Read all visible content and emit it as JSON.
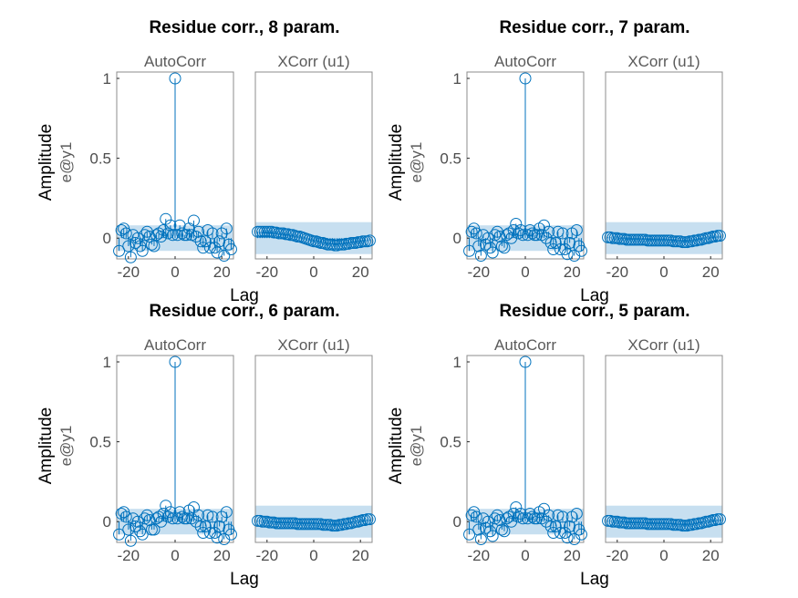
{
  "chart_data": [
    {
      "type": "scatter",
      "title": "Residue corr., 8 param.",
      "ylabel": "Amplitude",
      "channel_label": "e@y1",
      "xlabel": "Lag",
      "panels": [
        {
          "title": "AutoCorr",
          "xlim": [
            -25,
            25
          ],
          "ylim": [
            -0.13,
            1.04
          ],
          "xticks": [
            -20,
            0,
            20
          ],
          "yticks": [
            0,
            0.5,
            1
          ],
          "conf_band": [
            -0.08,
            0.08
          ],
          "x": [
            -24,
            -23,
            -22,
            -21,
            -20,
            -19,
            -18,
            -17,
            -16,
            -15,
            -14,
            -13,
            -12,
            -11,
            -10,
            -9,
            -8,
            -7,
            -6,
            -5,
            -4,
            -3,
            -2,
            -1,
            0,
            1,
            2,
            3,
            4,
            5,
            6,
            7,
            8,
            9,
            10,
            11,
            12,
            13,
            14,
            15,
            16,
            17,
            18,
            19,
            20,
            21,
            22,
            23,
            24
          ],
          "y": [
            -0.08,
            0.05,
            0.06,
            0.03,
            -0.05,
            -0.12,
            0.02,
            -0.03,
            0.0,
            -0.05,
            -0.08,
            0.02,
            0.04,
            0.01,
            -0.04,
            -0.05,
            0.02,
            0.03,
            0.01,
            0.05,
            0.12,
            0.03,
            0.08,
            0.02,
            1.0,
            0.02,
            0.08,
            0.03,
            0.02,
            0.02,
            0.06,
            0.02,
            0.11,
            0.01,
            0.04,
            -0.02,
            -0.06,
            -0.02,
            0.05,
            -0.06,
            0.03,
            -0.06,
            -0.09,
            -0.02,
            0.03,
            -0.11,
            0.06,
            -0.04,
            -0.07
          ]
        },
        {
          "title": "XCorr (u1)",
          "xlim": [
            -25,
            25
          ],
          "ylim": [
            -0.13,
            1.04
          ],
          "xticks": [
            -20,
            0,
            20
          ],
          "conf_band": [
            -0.1,
            0.1
          ],
          "x": [
            -24,
            -23,
            -22,
            -21,
            -20,
            -19,
            -18,
            -17,
            -16,
            -15,
            -14,
            -13,
            -12,
            -11,
            -10,
            -9,
            -8,
            -7,
            -6,
            -5,
            -4,
            -3,
            -2,
            -1,
            0,
            1,
            2,
            3,
            4,
            5,
            6,
            7,
            8,
            9,
            10,
            11,
            12,
            13,
            14,
            15,
            16,
            17,
            18,
            19,
            20,
            21,
            22,
            23,
            24
          ],
          "y": [
            0.04,
            0.04,
            0.04,
            0.04,
            0.04,
            0.04,
            0.04,
            0.035,
            0.035,
            0.03,
            0.03,
            0.03,
            0.025,
            0.025,
            0.02,
            0.02,
            0.015,
            0.01,
            0.01,
            0.005,
            0.0,
            -0.005,
            -0.01,
            -0.015,
            -0.02,
            -0.02,
            -0.025,
            -0.03,
            -0.03,
            -0.035,
            -0.04,
            -0.04,
            -0.04,
            -0.045,
            -0.045,
            -0.04,
            -0.04,
            -0.04,
            -0.035,
            -0.035,
            -0.03,
            -0.03,
            -0.03,
            -0.025,
            -0.025,
            -0.02,
            -0.02,
            -0.02,
            -0.015
          ]
        }
      ]
    },
    {
      "type": "scatter",
      "title": "Residue corr., 7 param.",
      "ylabel": "Amplitude",
      "channel_label": "e@y1",
      "xlabel": "Lag",
      "panels": [
        {
          "title": "AutoCorr",
          "xlim": [
            -25,
            25
          ],
          "ylim": [
            -0.13,
            1.04
          ],
          "xticks": [
            -20,
            0,
            20
          ],
          "yticks": [
            0,
            0.5,
            1
          ],
          "conf_band": [
            -0.08,
            0.08
          ],
          "x": [
            -24,
            -23,
            -22,
            -21,
            -20,
            -19,
            -18,
            -17,
            -16,
            -15,
            -14,
            -13,
            -12,
            -11,
            -10,
            -9,
            -8,
            -7,
            -6,
            -5,
            -4,
            -3,
            -2,
            -1,
            0,
            1,
            2,
            3,
            4,
            5,
            6,
            7,
            8,
            9,
            10,
            11,
            12,
            13,
            14,
            15,
            16,
            17,
            18,
            19,
            20,
            21,
            22,
            23,
            24
          ],
          "y": [
            -0.08,
            0.04,
            0.06,
            0.03,
            -0.05,
            -0.11,
            0.02,
            -0.04,
            0.0,
            -0.06,
            -0.09,
            0.02,
            0.04,
            0.01,
            -0.05,
            -0.06,
            0.02,
            0.03,
            0.0,
            0.05,
            0.09,
            0.03,
            0.05,
            0.02,
            1.0,
            0.02,
            0.05,
            0.03,
            0.02,
            0.02,
            0.06,
            0.02,
            0.08,
            0.0,
            0.04,
            -0.03,
            -0.07,
            -0.03,
            0.04,
            -0.07,
            0.03,
            -0.07,
            -0.1,
            -0.03,
            0.03,
            -0.11,
            0.05,
            -0.05,
            -0.08
          ]
        },
        {
          "title": "XCorr (u1)",
          "xlim": [
            -25,
            25
          ],
          "ylim": [
            -0.13,
            1.04
          ],
          "xticks": [
            -20,
            0,
            20
          ],
          "conf_band": [
            -0.1,
            0.1
          ],
          "x": [
            -24,
            -23,
            -22,
            -21,
            -20,
            -19,
            -18,
            -17,
            -16,
            -15,
            -14,
            -13,
            -12,
            -11,
            -10,
            -9,
            -8,
            -7,
            -6,
            -5,
            -4,
            -3,
            -2,
            -1,
            0,
            1,
            2,
            3,
            4,
            5,
            6,
            7,
            8,
            9,
            10,
            11,
            12,
            13,
            14,
            15,
            16,
            17,
            18,
            19,
            20,
            21,
            22,
            23,
            24
          ],
          "y": [
            0.005,
            0.005,
            0.0,
            0.0,
            0.0,
            -0.005,
            -0.005,
            -0.005,
            -0.01,
            -0.01,
            -0.01,
            -0.01,
            -0.01,
            -0.01,
            -0.01,
            -0.01,
            -0.01,
            -0.015,
            -0.015,
            -0.015,
            -0.015,
            -0.015,
            -0.015,
            -0.015,
            -0.015,
            -0.015,
            -0.015,
            -0.015,
            -0.02,
            -0.02,
            -0.02,
            -0.02,
            -0.025,
            -0.025,
            -0.025,
            -0.02,
            -0.02,
            -0.015,
            -0.015,
            -0.01,
            -0.01,
            -0.005,
            0.0,
            0.0,
            0.005,
            0.01,
            0.01,
            0.015,
            0.015
          ]
        }
      ]
    },
    {
      "type": "scatter",
      "title": "Residue corr., 6 param.",
      "ylabel": "Amplitude",
      "channel_label": "e@y1",
      "xlabel": "Lag",
      "panels": [
        {
          "title": "AutoCorr",
          "xlim": [
            -25,
            25
          ],
          "ylim": [
            -0.13,
            1.04
          ],
          "xticks": [
            -20,
            0,
            20
          ],
          "yticks": [
            0,
            0.5,
            1
          ],
          "conf_band": [
            -0.08,
            0.08
          ],
          "x": [
            -24,
            -23,
            -22,
            -21,
            -20,
            -19,
            -18,
            -17,
            -16,
            -15,
            -14,
            -13,
            -12,
            -11,
            -10,
            -9,
            -8,
            -7,
            -6,
            -5,
            -4,
            -3,
            -2,
            -1,
            0,
            1,
            2,
            3,
            4,
            5,
            6,
            7,
            8,
            9,
            10,
            11,
            12,
            13,
            14,
            15,
            16,
            17,
            18,
            19,
            20,
            21,
            22,
            23,
            24
          ],
          "y": [
            -0.08,
            0.05,
            0.06,
            0.03,
            -0.05,
            -0.12,
            0.02,
            -0.03,
            0.0,
            -0.06,
            -0.08,
            0.02,
            0.04,
            0.01,
            -0.05,
            -0.05,
            0.02,
            0.03,
            0.0,
            0.05,
            0.1,
            0.03,
            0.06,
            0.02,
            1.0,
            0.02,
            0.06,
            0.03,
            0.02,
            0.02,
            0.07,
            0.02,
            0.09,
            0.0,
            0.04,
            -0.03,
            -0.07,
            -0.03,
            0.04,
            -0.07,
            0.03,
            -0.07,
            -0.1,
            -0.03,
            0.03,
            -0.11,
            0.06,
            -0.05,
            -0.08
          ]
        },
        {
          "title": "XCorr (u1)",
          "xlim": [
            -25,
            25
          ],
          "ylim": [
            -0.13,
            1.04
          ],
          "xticks": [
            -20,
            0,
            20
          ],
          "conf_band": [
            -0.1,
            0.1
          ],
          "x": [
            -24,
            -23,
            -22,
            -21,
            -20,
            -19,
            -18,
            -17,
            -16,
            -15,
            -14,
            -13,
            -12,
            -11,
            -10,
            -9,
            -8,
            -7,
            -6,
            -5,
            -4,
            -3,
            -2,
            -1,
            0,
            1,
            2,
            3,
            4,
            5,
            6,
            7,
            8,
            9,
            10,
            11,
            12,
            13,
            14,
            15,
            16,
            17,
            18,
            19,
            20,
            21,
            22,
            23,
            24
          ],
          "y": [
            0.005,
            0.005,
            0.0,
            0.0,
            0.0,
            -0.005,
            -0.005,
            -0.005,
            -0.01,
            -0.01,
            -0.01,
            -0.01,
            -0.01,
            -0.01,
            -0.01,
            -0.01,
            -0.01,
            -0.015,
            -0.015,
            -0.015,
            -0.015,
            -0.015,
            -0.015,
            -0.015,
            -0.015,
            -0.015,
            -0.015,
            -0.015,
            -0.02,
            -0.02,
            -0.02,
            -0.02,
            -0.025,
            -0.025,
            -0.025,
            -0.02,
            -0.02,
            -0.015,
            -0.015,
            -0.01,
            -0.01,
            -0.005,
            0.0,
            0.0,
            0.005,
            0.01,
            0.01,
            0.015,
            0.015
          ]
        }
      ]
    },
    {
      "type": "scatter",
      "title": "Residue corr., 5 param.",
      "ylabel": "Amplitude",
      "channel_label": "e@y1",
      "xlabel": "Lag",
      "panels": [
        {
          "title": "AutoCorr",
          "xlim": [
            -25,
            25
          ],
          "ylim": [
            -0.13,
            1.04
          ],
          "xticks": [
            -20,
            0,
            20
          ],
          "yticks": [
            0,
            0.5,
            1
          ],
          "conf_band": [
            -0.08,
            0.08
          ],
          "x": [
            -24,
            -23,
            -22,
            -21,
            -20,
            -19,
            -18,
            -17,
            -16,
            -15,
            -14,
            -13,
            -12,
            -11,
            -10,
            -9,
            -8,
            -7,
            -6,
            -5,
            -4,
            -3,
            -2,
            -1,
            0,
            1,
            2,
            3,
            4,
            5,
            6,
            7,
            8,
            9,
            10,
            11,
            12,
            13,
            14,
            15,
            16,
            17,
            18,
            19,
            20,
            21,
            22,
            23,
            24
          ],
          "y": [
            -0.08,
            0.04,
            0.06,
            0.03,
            -0.05,
            -0.11,
            0.02,
            -0.04,
            0.0,
            -0.06,
            -0.09,
            0.02,
            0.04,
            0.01,
            -0.05,
            -0.06,
            0.02,
            0.03,
            0.0,
            0.05,
            0.09,
            0.03,
            0.05,
            0.02,
            1.0,
            0.02,
            0.05,
            0.03,
            0.02,
            0.02,
            0.06,
            0.02,
            0.08,
            0.0,
            0.04,
            -0.03,
            -0.07,
            -0.03,
            0.04,
            -0.07,
            0.03,
            -0.07,
            -0.1,
            -0.03,
            0.03,
            -0.11,
            0.05,
            -0.05,
            -0.08
          ]
        },
        {
          "title": "XCorr (u1)",
          "xlim": [
            -25,
            25
          ],
          "ylim": [
            -0.13,
            1.04
          ],
          "xticks": [
            -20,
            0,
            20
          ],
          "conf_band": [
            -0.1,
            0.1
          ],
          "x": [
            -24,
            -23,
            -22,
            -21,
            -20,
            -19,
            -18,
            -17,
            -16,
            -15,
            -14,
            -13,
            -12,
            -11,
            -10,
            -9,
            -8,
            -7,
            -6,
            -5,
            -4,
            -3,
            -2,
            -1,
            0,
            1,
            2,
            3,
            4,
            5,
            6,
            7,
            8,
            9,
            10,
            11,
            12,
            13,
            14,
            15,
            16,
            17,
            18,
            19,
            20,
            21,
            22,
            23,
            24
          ],
          "y": [
            0.005,
            0.005,
            0.0,
            0.0,
            0.0,
            -0.005,
            -0.005,
            -0.005,
            -0.01,
            -0.01,
            -0.01,
            -0.01,
            -0.01,
            -0.01,
            -0.01,
            -0.01,
            -0.01,
            -0.015,
            -0.015,
            -0.015,
            -0.015,
            -0.015,
            -0.015,
            -0.015,
            -0.015,
            -0.015,
            -0.015,
            -0.015,
            -0.02,
            -0.02,
            -0.02,
            -0.02,
            -0.025,
            -0.025,
            -0.025,
            -0.02,
            -0.02,
            -0.015,
            -0.015,
            -0.01,
            -0.01,
            -0.005,
            0.0,
            0.0,
            0.005,
            0.01,
            0.01,
            0.015,
            0.015
          ]
        }
      ]
    }
  ],
  "colors": {
    "marker": "#0072bd",
    "band": "#c7dff0",
    "axes": "#262626",
    "frame": "#8c8c8c"
  }
}
